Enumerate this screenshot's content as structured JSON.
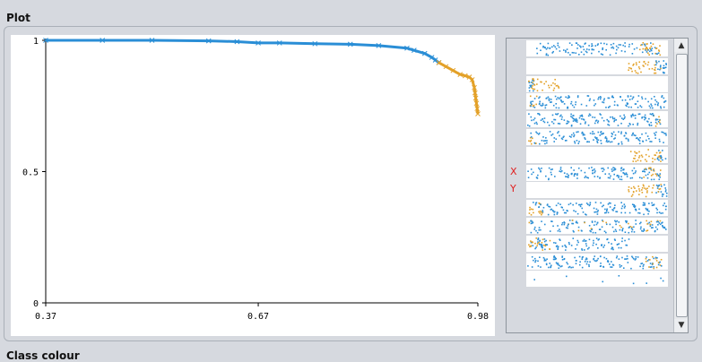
{
  "labels": {
    "plot": "Plot",
    "class_colour": "Class colour"
  },
  "colors": {
    "blue": "#2a8ed6",
    "orange": "#e3a128",
    "axis": "#000000"
  },
  "chart_data": {
    "type": "line",
    "x_ticks": [
      "0.37",
      "0.67",
      "0.98"
    ],
    "y_ticks": [
      "0",
      "0.5",
      "1"
    ],
    "xlim": [
      0.37,
      0.98
    ],
    "ylim": [
      0,
      1
    ],
    "series": [
      {
        "color": "#2a8ed6",
        "x": [
          0.37,
          0.45,
          0.52,
          0.6,
          0.64,
          0.67,
          0.7,
          0.75,
          0.8,
          0.84,
          0.88,
          0.89,
          0.905,
          0.915,
          0.92,
          0.925
        ],
        "y": [
          1.0,
          1.0,
          1.0,
          0.998,
          0.995,
          0.99,
          0.99,
          0.987,
          0.985,
          0.98,
          0.97,
          0.962,
          0.95,
          0.935,
          0.925,
          0.915
        ]
      },
      {
        "color": "#e3a128",
        "x": [
          0.925,
          0.935,
          0.945,
          0.955,
          0.962,
          0.968,
          0.972,
          0.975,
          0.976,
          0.977,
          0.978,
          0.979,
          0.98
        ],
        "y": [
          0.915,
          0.9,
          0.885,
          0.87,
          0.865,
          0.86,
          0.85,
          0.82,
          0.8,
          0.78,
          0.76,
          0.74,
          0.72
        ]
      }
    ]
  },
  "matrix": {
    "x_label": "X",
    "y_label": "Y",
    "scroll_up": "▲",
    "scroll_down": "▼",
    "rows": [
      {
        "fill": 0.93,
        "blue": 0.86,
        "orange": 0.14,
        "split": "right"
      },
      {
        "fill": 0.35,
        "blue": 0.4,
        "orange": 0.6,
        "split": "right"
      },
      {
        "fill": 0.3,
        "blue": 0.25,
        "orange": 0.75,
        "split": "left"
      },
      {
        "fill": 1.0,
        "blue": 0.97,
        "orange": 0.03,
        "split": "left"
      },
      {
        "fill": 1.0,
        "blue": 0.96,
        "orange": 0.04,
        "split": "right"
      },
      {
        "fill": 1.0,
        "blue": 0.97,
        "orange": 0.03,
        "split": "left"
      },
      {
        "fill": 0.3,
        "blue": 0.35,
        "orange": 0.65,
        "split": "right"
      },
      {
        "fill": 1.0,
        "blue": 0.9,
        "orange": 0.1,
        "split": "right"
      },
      {
        "fill": 0.35,
        "blue": 0.4,
        "orange": 0.6,
        "split": "right"
      },
      {
        "fill": 1.0,
        "blue": 0.9,
        "orange": 0.1,
        "split": "left"
      },
      {
        "fill": 1.0,
        "blue": 0.85,
        "orange": 0.15,
        "split": "mixed"
      },
      {
        "fill": 0.75,
        "blue": 0.8,
        "orange": 0.2,
        "split": "left"
      },
      {
        "fill": 1.0,
        "blue": 0.9,
        "orange": 0.1,
        "split": "right"
      },
      {
        "fill": 0.08,
        "blue": 0.9,
        "orange": 0.1,
        "split": "sparse"
      }
    ],
    "x_label_row": 7,
    "y_label_row": 8
  }
}
